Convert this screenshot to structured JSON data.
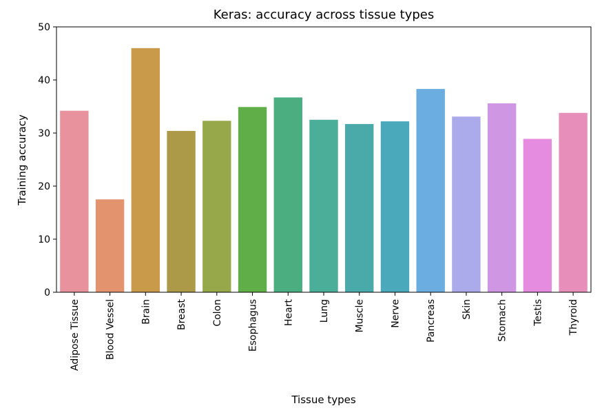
{
  "chart_data": {
    "type": "bar",
    "title": "Keras: accuracy across tissue types",
    "xlabel": "Tissue types",
    "ylabel": "Training accuracy",
    "ylim": [
      0,
      50
    ],
    "yticks": [
      0,
      10,
      20,
      30,
      40,
      50
    ],
    "grid": false,
    "categories": [
      "Adipose Tissue",
      "Blood Vessel",
      "Brain",
      "Breast",
      "Colon",
      "Esophagus",
      "Heart",
      "Lung",
      "Muscle",
      "Nerve",
      "Pancreas",
      "Skin",
      "Stomach",
      "Testis",
      "Thyroid"
    ],
    "values": [
      34.2,
      17.5,
      46.0,
      30.4,
      32.3,
      34.9,
      36.7,
      32.5,
      31.7,
      32.2,
      38.3,
      33.1,
      35.6,
      28.9,
      33.8
    ],
    "colors": [
      "#e8929d",
      "#e4936f",
      "#c89a4a",
      "#ac9a49",
      "#96a84a",
      "#5fae48",
      "#4bae80",
      "#4bae98",
      "#4aaaaa",
      "#4aa9bb",
      "#6bade0",
      "#abaaea",
      "#cf97e3",
      "#e58ce0",
      "#e78fba"
    ]
  }
}
